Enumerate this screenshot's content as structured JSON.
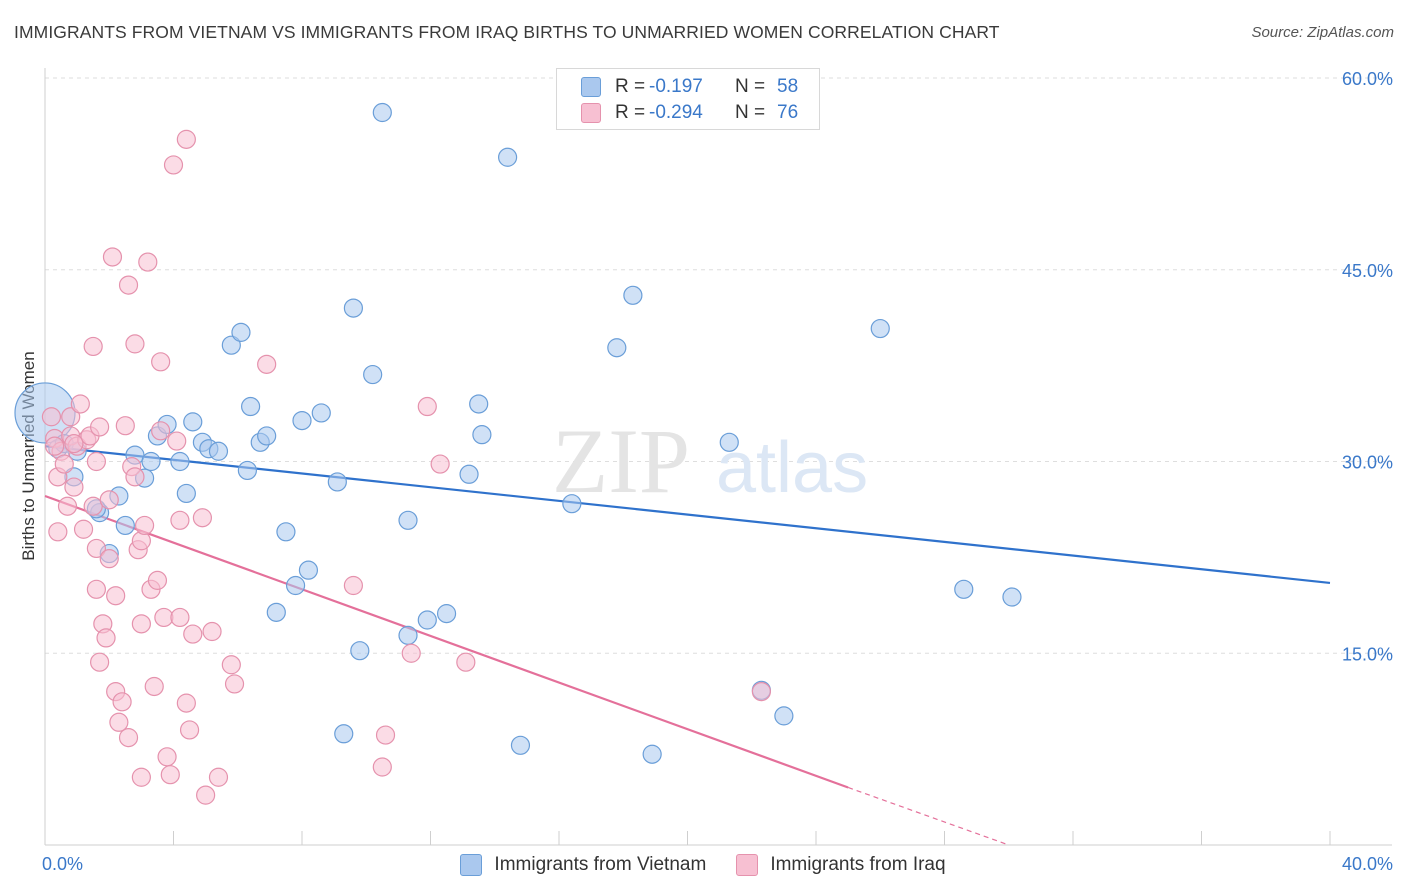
{
  "title": "IMMIGRANTS FROM VIETNAM VS IMMIGRANTS FROM IRAQ BIRTHS TO UNMARRIED WOMEN CORRELATION CHART",
  "source": "Source: ZipAtlas.com",
  "watermark": "ZIPatlas",
  "legend_stats": [
    {
      "r_label": "R =",
      "r_value": "-0.197",
      "n_label": "N =",
      "n_value": "58",
      "color": "#aac8ee",
      "border": "#6a9ed8"
    },
    {
      "r_label": "R =",
      "r_value": "-0.294",
      "n_label": "N =",
      "n_value": "76",
      "color": "#f7c0d2",
      "border": "#e592ad"
    }
  ],
  "chart_data": {
    "type": "scatter",
    "title": "IMMIGRANTS FROM VIETNAM VS IMMIGRANTS FROM IRAQ BIRTHS TO UNMARRIED WOMEN CORRELATION CHART",
    "xlabel": "",
    "ylabel": "Births to Unmarried Women",
    "xlim": [
      0,
      40
    ],
    "ylim": [
      0,
      60
    ],
    "x_tick_labels": [
      "0.0%",
      "40.0%"
    ],
    "y_ticks": [
      15,
      30,
      45,
      60
    ],
    "y_tick_labels": [
      "15.0%",
      "30.0%",
      "45.0%",
      "60.0%"
    ],
    "grid": true,
    "legend": [
      "Immigrants from Vietnam",
      "Immigrants from Iraq"
    ],
    "series": [
      {
        "name": "Immigrants from Vietnam",
        "color": "#6a9ed8",
        "fill": "#aac8ee",
        "trend": {
          "x": [
            0,
            40
          ],
          "y": [
            31.2,
            20.5
          ],
          "color": "#2f72cc"
        },
        "points": [
          [
            0.0,
            33.8
          ],
          [
            0.4,
            31.0
          ],
          [
            0.6,
            31.4
          ],
          [
            1.0,
            30.8
          ],
          [
            0.9,
            28.8
          ],
          [
            1.7,
            26.0
          ],
          [
            1.6,
            26.3
          ],
          [
            2.3,
            27.3
          ],
          [
            2.5,
            25.0
          ],
          [
            2.0,
            22.8
          ],
          [
            2.8,
            30.5
          ],
          [
            3.3,
            30.0
          ],
          [
            3.1,
            28.7
          ],
          [
            3.5,
            32.0
          ],
          [
            3.8,
            32.9
          ],
          [
            4.2,
            30.0
          ],
          [
            4.4,
            27.5
          ],
          [
            4.6,
            33.1
          ],
          [
            4.9,
            31.5
          ],
          [
            5.1,
            31.0
          ],
          [
            5.4,
            30.8
          ],
          [
            5.8,
            39.1
          ],
          [
            6.1,
            40.1
          ],
          [
            6.3,
            29.3
          ],
          [
            6.4,
            34.3
          ],
          [
            6.7,
            31.5
          ],
          [
            6.9,
            32.0
          ],
          [
            7.5,
            24.5
          ],
          [
            7.2,
            18.2
          ],
          [
            7.8,
            20.3
          ],
          [
            8.0,
            33.2
          ],
          [
            8.2,
            21.5
          ],
          [
            8.6,
            33.8
          ],
          [
            9.1,
            28.4
          ],
          [
            9.3,
            8.7
          ],
          [
            9.6,
            42.0
          ],
          [
            9.8,
            15.2
          ],
          [
            10.2,
            36.8
          ],
          [
            11.3,
            25.4
          ],
          [
            11.3,
            16.4
          ],
          [
            11.9,
            17.6
          ],
          [
            12.5,
            18.1
          ],
          [
            13.2,
            29.0
          ],
          [
            13.5,
            34.5
          ],
          [
            13.6,
            32.1
          ],
          [
            14.4,
            53.8
          ],
          [
            14.8,
            7.8
          ],
          [
            16.4,
            26.7
          ],
          [
            17.8,
            38.9
          ],
          [
            18.3,
            43.0
          ],
          [
            18.9,
            7.1
          ],
          [
            21.3,
            31.5
          ],
          [
            22.3,
            12.1
          ],
          [
            23.0,
            10.1
          ],
          [
            26.0,
            40.4
          ],
          [
            28.6,
            20.0
          ],
          [
            30.1,
            19.4
          ],
          [
            10.5,
            57.3
          ]
        ],
        "sizes": {
          "0": 30
        }
      },
      {
        "name": "Immigrants from Iraq",
        "color": "#e592ad",
        "fill": "#f7c0d2",
        "trend": {
          "x": [
            0,
            25
          ],
          "y": [
            27.3,
            4.5
          ],
          "dashed_to": {
            "x": 30,
            "y": 0
          },
          "color": "#e4709a"
        },
        "points": [
          [
            0.2,
            33.5
          ],
          [
            0.3,
            31.8
          ],
          [
            0.5,
            30.8
          ],
          [
            0.4,
            28.8
          ],
          [
            0.6,
            29.8
          ],
          [
            0.7,
            26.5
          ],
          [
            0.4,
            24.5
          ],
          [
            0.8,
            33.5
          ],
          [
            0.8,
            32.0
          ],
          [
            0.9,
            28.0
          ],
          [
            1.0,
            31.2
          ],
          [
            1.1,
            34.5
          ],
          [
            1.3,
            31.7
          ],
          [
            1.4,
            32.0
          ],
          [
            1.2,
            24.7
          ],
          [
            1.5,
            26.5
          ],
          [
            1.6,
            23.2
          ],
          [
            1.7,
            32.7
          ],
          [
            1.6,
            30.0
          ],
          [
            1.6,
            20.0
          ],
          [
            1.7,
            14.3
          ],
          [
            1.8,
            17.3
          ],
          [
            1.9,
            16.2
          ],
          [
            2.0,
            22.4
          ],
          [
            2.1,
            46.0
          ],
          [
            2.0,
            27.0
          ],
          [
            2.2,
            19.5
          ],
          [
            2.2,
            12.0
          ],
          [
            2.3,
            9.6
          ],
          [
            2.4,
            11.2
          ],
          [
            2.5,
            32.8
          ],
          [
            2.6,
            8.4
          ],
          [
            2.6,
            43.8
          ],
          [
            2.7,
            29.6
          ],
          [
            2.8,
            28.8
          ],
          [
            2.8,
            39.2
          ],
          [
            2.9,
            23.1
          ],
          [
            3.0,
            23.8
          ],
          [
            3.0,
            17.3
          ],
          [
            3.1,
            25.0
          ],
          [
            3.2,
            45.6
          ],
          [
            3.3,
            20.0
          ],
          [
            3.4,
            12.4
          ],
          [
            3.5,
            20.7
          ],
          [
            3.6,
            32.4
          ],
          [
            3.6,
            37.8
          ],
          [
            3.7,
            17.8
          ],
          [
            3.8,
            6.9
          ],
          [
            3.9,
            5.5
          ],
          [
            4.0,
            53.2
          ],
          [
            4.1,
            31.6
          ],
          [
            4.2,
            25.4
          ],
          [
            4.2,
            17.8
          ],
          [
            4.4,
            55.2
          ],
          [
            4.4,
            11.1
          ],
          [
            4.5,
            9.0
          ],
          [
            4.6,
            16.5
          ],
          [
            4.9,
            25.6
          ],
          [
            5.0,
            3.9
          ],
          [
            5.2,
            16.7
          ],
          [
            5.4,
            5.3
          ],
          [
            5.8,
            14.1
          ],
          [
            5.9,
            12.6
          ],
          [
            6.9,
            37.6
          ],
          [
            3.0,
            5.3
          ],
          [
            9.6,
            20.3
          ],
          [
            10.5,
            6.1
          ],
          [
            10.6,
            8.6
          ],
          [
            11.4,
            15.0
          ],
          [
            11.9,
            34.3
          ],
          [
            12.3,
            29.8
          ],
          [
            13.1,
            14.3
          ],
          [
            22.3,
            12.0
          ],
          [
            1.5,
            39.0
          ],
          [
            0.9,
            31.4
          ],
          [
            0.3,
            31.2
          ]
        ]
      }
    ]
  },
  "x_axis_labels": {
    "min": "0.0%",
    "max": "40.0%"
  },
  "bottom_legend": [
    {
      "label": "Immigrants from Vietnam",
      "color": "#aac8ee",
      "border": "#6a9ed8"
    },
    {
      "label": "Immigrants from Iraq",
      "color": "#f7c0d2",
      "border": "#e592ad"
    }
  ]
}
